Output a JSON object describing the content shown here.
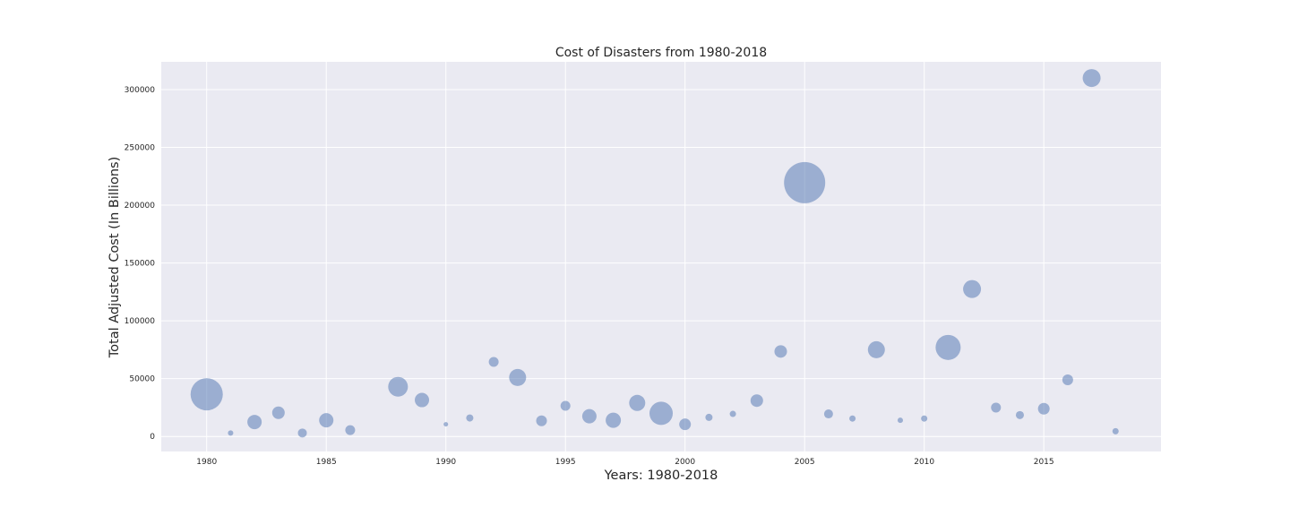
{
  "chart_data": {
    "type": "scatter",
    "title": "Cost of Disasters from 1980-2018",
    "xlabel": "Years: 1980-2018",
    "ylabel": "Total Adjusted Cost (In Billions)",
    "xlim": [
      1978.1,
      2019.9
    ],
    "ylim": [
      -13000,
      324000
    ],
    "xticks": [
      1980,
      1985,
      1990,
      1995,
      2000,
      2005,
      2010,
      2015
    ],
    "yticks": [
      0,
      50000,
      100000,
      150000,
      200000,
      250000,
      300000
    ],
    "grid": true,
    "legend": "none",
    "colors": {
      "background": "#eaeaf2",
      "grid": "#ffffff",
      "marker": "#4c72b0",
      "marker_alpha": 0.5,
      "text": "#262626"
    },
    "points": [
      {
        "x": 1980,
        "y": 36500,
        "size": 18
      },
      {
        "x": 1981,
        "y": 3000,
        "size": 3
      },
      {
        "x": 1982,
        "y": 12500,
        "size": 8
      },
      {
        "x": 1983,
        "y": 20500,
        "size": 7
      },
      {
        "x": 1984,
        "y": 3000,
        "size": 5
      },
      {
        "x": 1985,
        "y": 14000,
        "size": 8
      },
      {
        "x": 1986,
        "y": 5500,
        "size": 5.5
      },
      {
        "x": 1988,
        "y": 43000,
        "size": 11
      },
      {
        "x": 1989,
        "y": 31500,
        "size": 8
      },
      {
        "x": 1990,
        "y": 10500,
        "size": 2.5
      },
      {
        "x": 1991,
        "y": 16000,
        "size": 4
      },
      {
        "x": 1992,
        "y": 64500,
        "size": 5.5
      },
      {
        "x": 1993,
        "y": 51000,
        "size": 9.5
      },
      {
        "x": 1994,
        "y": 13500,
        "size": 6
      },
      {
        "x": 1995,
        "y": 26500,
        "size": 5.5
      },
      {
        "x": 1996,
        "y": 17500,
        "size": 8
      },
      {
        "x": 1997,
        "y": 14000,
        "size": 8.5
      },
      {
        "x": 1998,
        "y": 29000,
        "size": 9
      },
      {
        "x": 1999,
        "y": 20000,
        "size": 13
      },
      {
        "x": 2000,
        "y": 10500,
        "size": 6.5
      },
      {
        "x": 2001,
        "y": 16500,
        "size": 4
      },
      {
        "x": 2002,
        "y": 19500,
        "size": 3.5
      },
      {
        "x": 2003,
        "y": 31000,
        "size": 7
      },
      {
        "x": 2004,
        "y": 73500,
        "size": 7
      },
      {
        "x": 2005,
        "y": 219500,
        "size": 23
      },
      {
        "x": 2006,
        "y": 19500,
        "size": 5
      },
      {
        "x": 2007,
        "y": 15500,
        "size": 3.5
      },
      {
        "x": 2009,
        "y": 14000,
        "size": 3
      },
      {
        "x": 2010,
        "y": 15500,
        "size": 3.5
      },
      {
        "x": 2008,
        "y": 75000,
        "size": 9.5
      },
      {
        "x": 2011,
        "y": 77000,
        "size": 14
      },
      {
        "x": 2012,
        "y": 127500,
        "size": 10
      },
      {
        "x": 2013,
        "y": 25000,
        "size": 5.5
      },
      {
        "x": 2014,
        "y": 18500,
        "size": 4.5
      },
      {
        "x": 2015,
        "y": 24000,
        "size": 6.5
      },
      {
        "x": 2016,
        "y": 49000,
        "size": 6
      },
      {
        "x": 2017,
        "y": 310000,
        "size": 10
      },
      {
        "x": 2018,
        "y": 4500,
        "size": 3.5
      }
    ]
  }
}
